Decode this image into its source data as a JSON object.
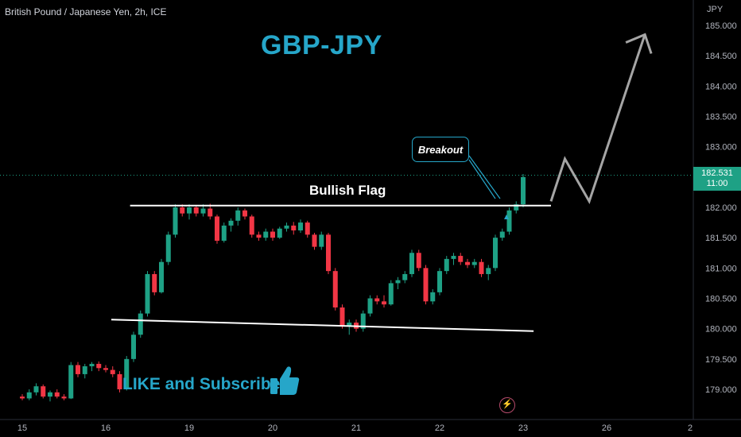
{
  "header": {
    "symbol": "British Pound / Japanese Yen, 2h, ICE",
    "currency": "JPY"
  },
  "overlay": {
    "title": "GBP-JPY",
    "flag_label": "Bullish Flag",
    "breakout_label": "Breakout",
    "cta": "LIKE and Subscribe"
  },
  "price_tag": {
    "price": "182.531",
    "countdown": "11:00"
  },
  "icons": {
    "thumb": "thumbs-up-icon",
    "bolt": "lightning-icon"
  },
  "colors": {
    "up": "#1ea185",
    "down": "#f23645",
    "accent": "#26a6c9",
    "line": "#ffffff",
    "arrow": "#a5a5a5"
  },
  "chart_data": {
    "type": "candlestick",
    "y_axis": {
      "min": 178.69,
      "max": 185.24,
      "ticks": [
        "185.000",
        "184.500",
        "184.000",
        "183.500",
        "183.000",
        "182.500",
        "182.000",
        "181.500",
        "181.000",
        "180.500",
        "180.000",
        "179.500",
        "179.000"
      ]
    },
    "x_axis": {
      "ticks": [
        {
          "label": "15",
          "bar": 0
        },
        {
          "label": "16",
          "bar": 12
        },
        {
          "label": "19",
          "bar": 24
        },
        {
          "label": "20",
          "bar": 36
        },
        {
          "label": "21",
          "bar": 48
        },
        {
          "label": "22",
          "bar": 60
        },
        {
          "label": "23",
          "bar": 72
        },
        {
          "label": "26",
          "bar": 84
        },
        {
          "label": "2",
          "bar": 96
        }
      ]
    },
    "last_price": 182.531,
    "candles": [
      [
        178.88,
        178.92,
        178.82,
        178.85
      ],
      [
        178.85,
        179.0,
        178.82,
        178.95
      ],
      [
        178.95,
        179.1,
        178.9,
        179.05
      ],
      [
        179.05,
        179.08,
        178.85,
        178.88
      ],
      [
        178.88,
        178.98,
        178.8,
        178.95
      ],
      [
        178.95,
        179.0,
        178.85,
        178.88
      ],
      [
        178.88,
        178.92,
        178.82,
        178.85
      ],
      [
        178.85,
        179.45,
        178.84,
        179.4
      ],
      [
        179.4,
        179.45,
        179.2,
        179.25
      ],
      [
        179.25,
        179.42,
        179.18,
        179.38
      ],
      [
        179.38,
        179.45,
        179.3,
        179.42
      ],
      [
        179.42,
        179.46,
        179.3,
        179.35
      ],
      [
        179.35,
        179.4,
        179.28,
        179.32
      ],
      [
        179.32,
        179.38,
        179.2,
        179.25
      ],
      [
        179.25,
        179.3,
        178.95,
        179.0
      ],
      [
        179.0,
        179.55,
        178.98,
        179.5
      ],
      [
        179.5,
        179.95,
        179.45,
        179.9
      ],
      [
        179.9,
        180.3,
        179.85,
        180.25
      ],
      [
        180.25,
        180.95,
        180.2,
        180.9
      ],
      [
        180.9,
        180.95,
        180.55,
        180.6
      ],
      [
        180.6,
        181.15,
        180.58,
        181.1
      ],
      [
        181.1,
        181.6,
        181.05,
        181.55
      ],
      [
        181.55,
        182.05,
        181.5,
        182.0
      ],
      [
        182.0,
        182.05,
        181.85,
        181.9
      ],
      [
        181.9,
        182.05,
        181.8,
        182.0
      ],
      [
        182.0,
        182.04,
        181.85,
        181.9
      ],
      [
        181.9,
        182.05,
        181.85,
        181.98
      ],
      [
        181.98,
        182.06,
        181.8,
        181.85
      ],
      [
        181.85,
        181.88,
        181.4,
        181.45
      ],
      [
        181.45,
        181.75,
        181.42,
        181.7
      ],
      [
        181.7,
        181.82,
        181.6,
        181.78
      ],
      [
        181.78,
        182.0,
        181.7,
        181.95
      ],
      [
        181.95,
        181.98,
        181.8,
        181.85
      ],
      [
        181.85,
        181.88,
        181.5,
        181.55
      ],
      [
        181.55,
        181.6,
        181.45,
        181.5
      ],
      [
        181.5,
        181.65,
        181.45,
        181.6
      ],
      [
        181.6,
        181.65,
        181.45,
        181.5
      ],
      [
        181.5,
        181.68,
        181.48,
        181.65
      ],
      [
        181.65,
        181.75,
        181.6,
        181.7
      ],
      [
        181.7,
        181.76,
        181.55,
        181.62
      ],
      [
        181.62,
        181.8,
        181.58,
        181.75
      ],
      [
        181.75,
        181.78,
        181.5,
        181.55
      ],
      [
        181.55,
        181.58,
        181.3,
        181.35
      ],
      [
        181.35,
        181.6,
        181.3,
        181.55
      ],
      [
        181.55,
        181.58,
        180.9,
        180.95
      ],
      [
        180.95,
        181.0,
        180.3,
        180.35
      ],
      [
        180.35,
        180.4,
        180.0,
        180.05
      ],
      [
        180.05,
        180.15,
        179.9,
        180.1
      ],
      [
        180.1,
        180.15,
        179.95,
        180.0
      ],
      [
        180.0,
        180.3,
        179.95,
        180.25
      ],
      [
        180.25,
        180.55,
        180.2,
        180.5
      ],
      [
        180.5,
        180.55,
        180.4,
        180.45
      ],
      [
        180.45,
        180.55,
        180.35,
        180.4
      ],
      [
        180.4,
        180.8,
        180.38,
        180.75
      ],
      [
        180.75,
        180.85,
        180.65,
        180.8
      ],
      [
        180.8,
        180.95,
        180.75,
        180.9
      ],
      [
        180.9,
        181.3,
        180.85,
        181.25
      ],
      [
        181.25,
        181.3,
        180.95,
        181.0
      ],
      [
        181.0,
        181.05,
        180.4,
        180.45
      ],
      [
        180.45,
        180.65,
        180.4,
        180.6
      ],
      [
        180.6,
        181.0,
        180.55,
        180.95
      ],
      [
        180.95,
        181.2,
        180.9,
        181.15
      ],
      [
        181.15,
        181.25,
        181.05,
        181.2
      ],
      [
        181.2,
        181.25,
        181.05,
        181.1
      ],
      [
        181.1,
        181.15,
        181.0,
        181.05
      ],
      [
        181.05,
        181.15,
        181.0,
        181.1
      ],
      [
        181.1,
        181.15,
        180.85,
        180.9
      ],
      [
        180.9,
        181.05,
        180.8,
        181.0
      ],
      [
        181.0,
        181.55,
        180.95,
        181.5
      ],
      [
        181.5,
        181.65,
        181.45,
        181.6
      ],
      [
        181.6,
        182.0,
        181.55,
        181.95
      ],
      [
        181.95,
        182.1,
        181.9,
        182.05
      ],
      [
        182.05,
        182.55,
        182.0,
        182.5
      ]
    ],
    "pattern_lines": {
      "flag_top": {
        "from": [
          15.5,
          182.03
        ],
        "to": [
          76.0,
          182.03
        ]
      },
      "flag_bottom": {
        "from": [
          12.8,
          180.15
        ],
        "to": [
          73.5,
          179.96
        ]
      },
      "projection": [
        [
          76.0,
          182.1
        ],
        [
          78.0,
          182.8
        ],
        [
          81.5,
          182.1
        ],
        [
          89.5,
          184.85
        ]
      ]
    }
  }
}
